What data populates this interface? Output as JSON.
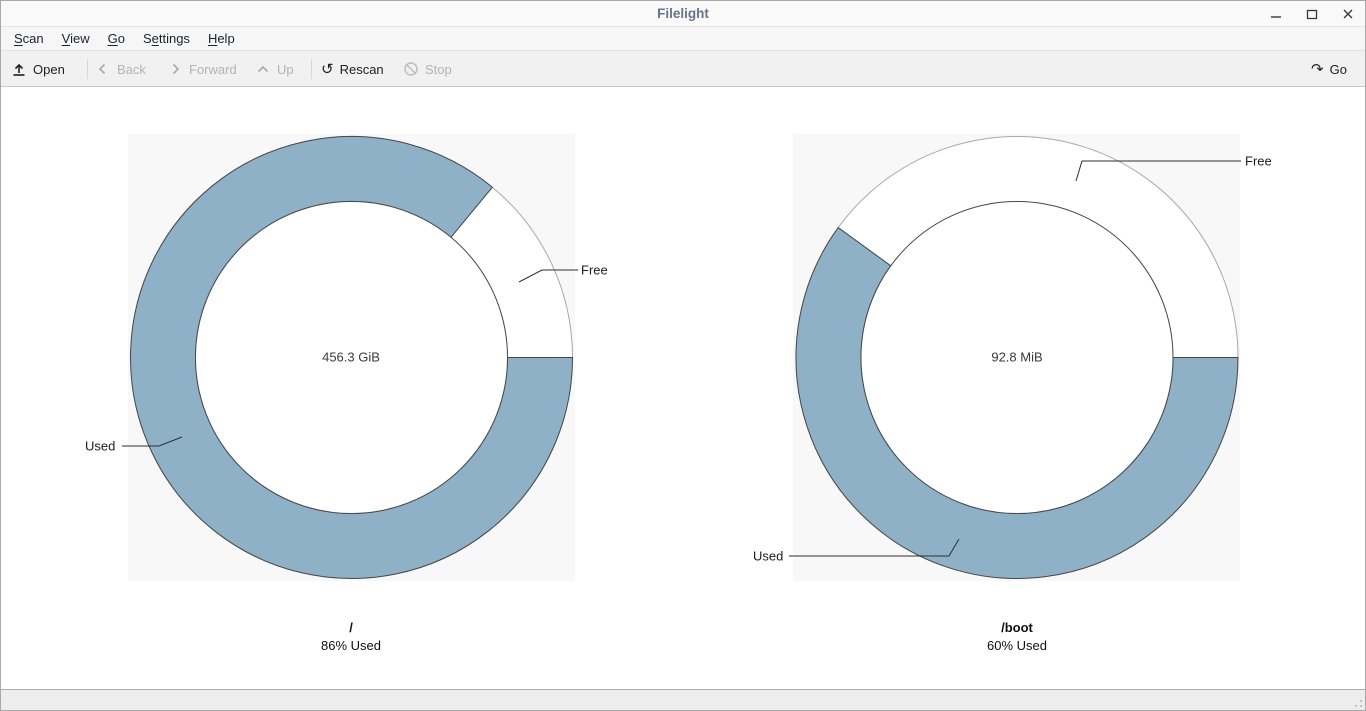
{
  "window": {
    "title": "Filelight"
  },
  "menubar": {
    "items": [
      {
        "label": "Scan",
        "pre": "",
        "accel": "S",
        "post": "can"
      },
      {
        "label": "View",
        "pre": "",
        "accel": "V",
        "post": "iew"
      },
      {
        "label": "Go",
        "pre": "",
        "accel": "G",
        "post": "o"
      },
      {
        "label": "Settings",
        "pre": "S",
        "accel": "e",
        "post": "ttings"
      },
      {
        "label": "Help",
        "pre": "",
        "accel": "H",
        "post": "elp"
      }
    ]
  },
  "toolbar": {
    "open_label": "Open",
    "back_label": "Back",
    "forward_label": "Forward",
    "up_label": "Up",
    "rescan_label": "Rescan",
    "stop_label": "Stop",
    "go_label": "Go",
    "rescan_icon_glyph": "↺",
    "go_icon_glyph": "↷",
    "url_value": ""
  },
  "chart_data": [
    {
      "type": "pie",
      "title": "/",
      "subtitle": "86% Used",
      "center_label": "456.3 GiB",
      "used_percent": 86,
      "free_percent": 14,
      "slices": [
        {
          "label": "Used",
          "percent": 86,
          "color": "#8eb1c8"
        },
        {
          "label": "Free",
          "percent": 14,
          "color": "#ffffff"
        }
      ],
      "legend_position": "callout"
    },
    {
      "type": "pie",
      "title": "/boot",
      "subtitle": "60% Used",
      "center_label": "92.8 MiB",
      "used_percent": 60,
      "free_percent": 40,
      "slices": [
        {
          "label": "Used",
          "percent": 60,
          "color": "#8eb1c8"
        },
        {
          "label": "Free",
          "percent": 40,
          "color": "#ffffff"
        }
      ],
      "legend_position": "callout"
    }
  ]
}
